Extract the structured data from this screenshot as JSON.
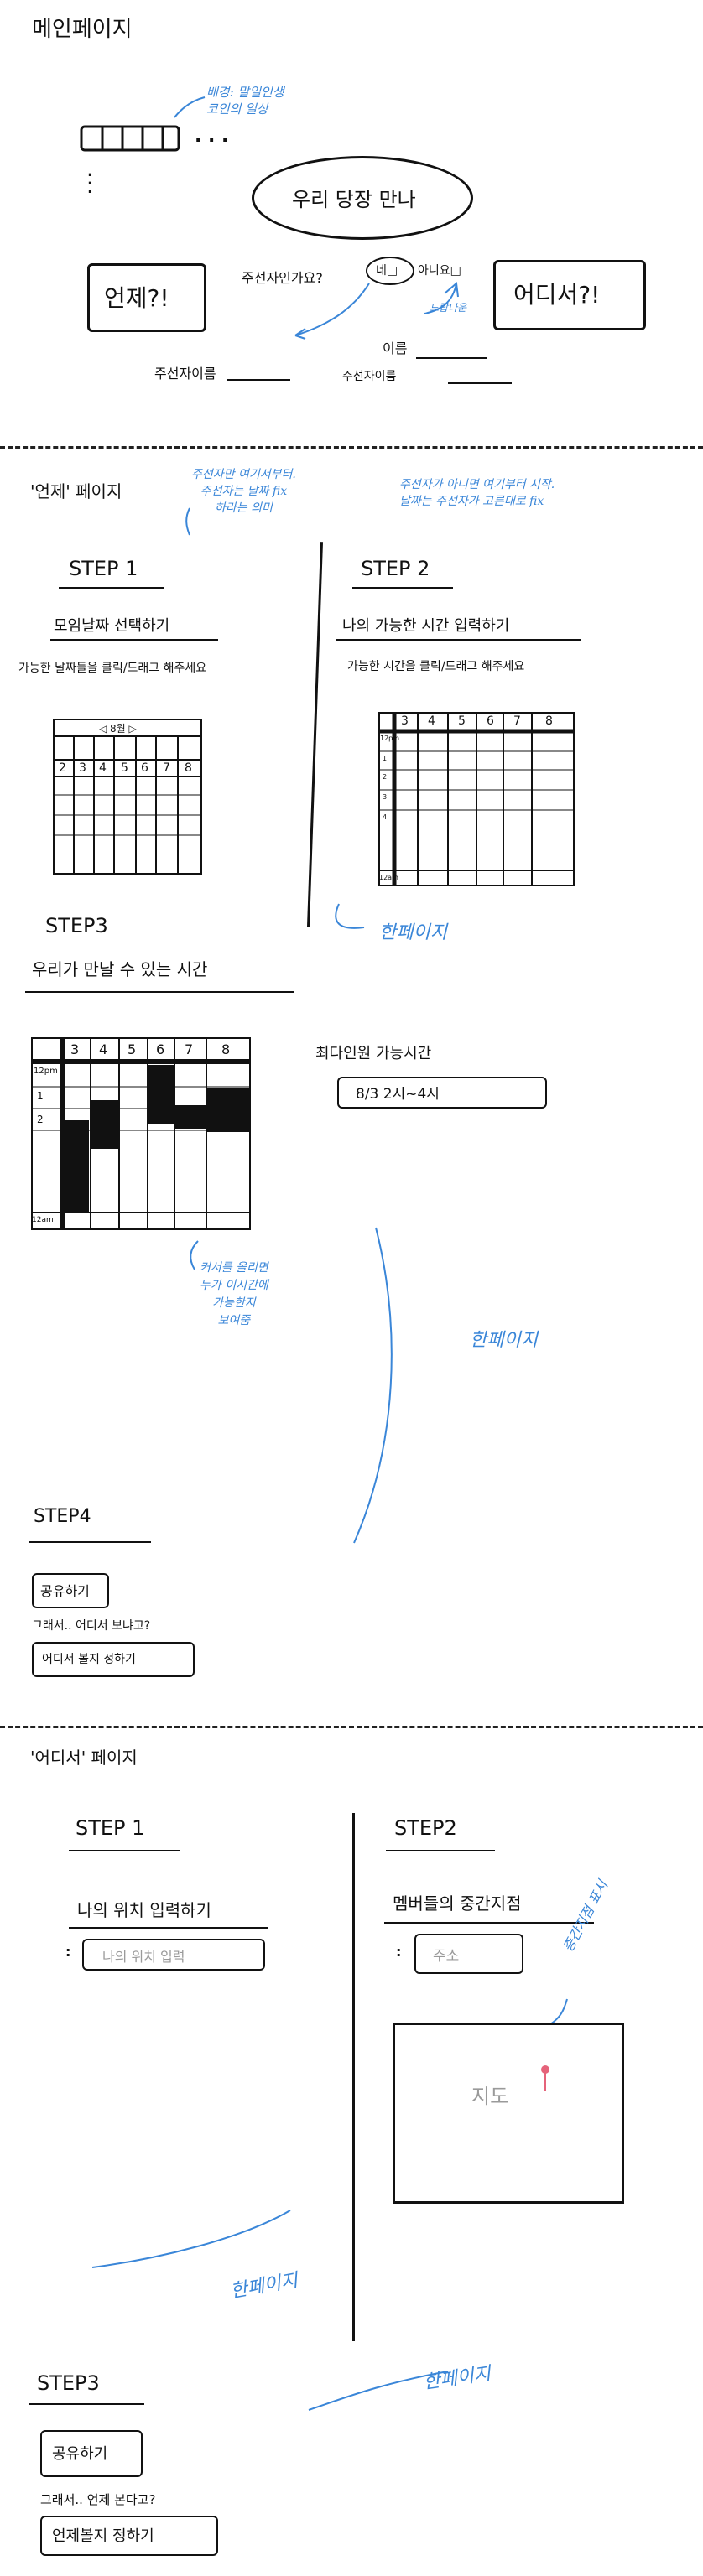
{
  "main": {
    "title": "메인페이지",
    "bg_note": "배경: 말일인생\n코인의 일상",
    "bubble": "우리 당장 만나",
    "host_q": "주선자인가요?",
    "yes": "네□",
    "no": "아니요□",
    "dropdown": "드랍다운",
    "when_btn": "언제?!",
    "where_btn": "어디서?!",
    "host_name": "주선자이름",
    "name": "이름",
    "host_name2": "주선자이름"
  },
  "when": {
    "title": "'언제' 페이지",
    "note_left": "주선자만 여기서부터.\n주선자는 날짜 fix\n하라는 의미",
    "note_right": "주선자가 아니면 여기부터 시작.\n날짜는 주선자가 고른대로 fix",
    "step1": "STEP 1",
    "step1_sub": "모임날짜 선택하기",
    "step1_desc": "가능한 날짜들을 클릭/드래그 해주세요",
    "cal_header": "◁ 8월 ▷",
    "cal_row": [
      "2",
      "3",
      "4",
      "5",
      "6",
      "7",
      "8"
    ],
    "step2": "STEP 2",
    "step2_sub": "나의 가능한 시간 입력하기",
    "step2_desc": "가능한 시간을 클릭/드래그 해주세요",
    "grid2_header": [
      "3",
      "4",
      "5",
      "6",
      "7",
      "8"
    ],
    "grid2_rows": [
      "12pm",
      "1",
      "2",
      "3",
      "4"
    ],
    "grid2_last": "12am",
    "one_page_1": "한페이지",
    "step3": "STEP3",
    "step3_sub": "우리가 만날 수 있는 시간",
    "grid3_header": [
      "3",
      "4",
      "5",
      "6",
      "7",
      "8"
    ],
    "grid3_rows": [
      "12pm",
      "1",
      "2"
    ],
    "grid3_last": "12am",
    "max_label": "최다인원 가능시간",
    "max_value": "8/3  2시~4시",
    "hover_note": "커서를 올리면\n누가 이시간에\n가능한지\n보여줌",
    "one_page_2": "한페이지",
    "step4": "STEP4",
    "share": "공유하기",
    "then_q": "그래서.. 어디서 보냐고?",
    "decide_where": "어디서 볼지 정하기"
  },
  "where": {
    "title": "'어디서' 페이지",
    "step1": "STEP 1",
    "step1_sub": "나의 위치 입력하기",
    "loc_placeholder": "나의 위치 입력",
    "step2": "STEP2",
    "step2_sub": "멤버들의 중간지점",
    "addr_placeholder": "주소",
    "mid_note": "중간지점 표시",
    "map_label": "지도",
    "one_page_1": "한페이지",
    "one_page_2": "한페이지",
    "step3": "STEP3",
    "share": "공유하기",
    "then_q": "그래서.. 언제 본다고?",
    "decide_when": "언제볼지 정하기"
  }
}
